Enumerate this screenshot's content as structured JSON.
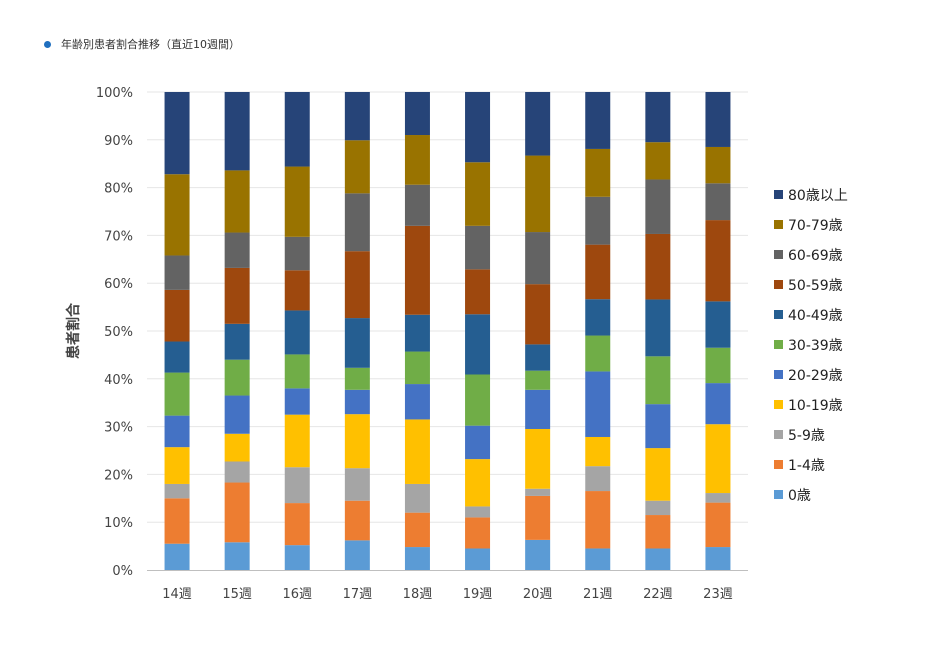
{
  "header": {
    "title": "年齢別患者割合推移（直近10週間）"
  },
  "chart_data": {
    "type": "bar",
    "stacked": true,
    "percent": true,
    "ylabel": "患者割合",
    "ylim": [
      0,
      100
    ],
    "y_ticks": [
      "0%",
      "10%",
      "20%",
      "30%",
      "40%",
      "50%",
      "60%",
      "70%",
      "80%",
      "90%",
      "100%"
    ],
    "grid": true,
    "legend_position": "right",
    "categories": [
      "14週",
      "15週",
      "16週",
      "17週",
      "18週",
      "19週",
      "20週",
      "21週",
      "22週",
      "23週"
    ],
    "series": [
      {
        "name": "0歳",
        "color": "#5b9bd5",
        "values": [
          5.5,
          5.8,
          5.2,
          6.2,
          4.8,
          4.5,
          6.3,
          4.5,
          4.5,
          4.8
        ]
      },
      {
        "name": "1-4歳",
        "color": "#ed7d31",
        "values": [
          9.5,
          12.5,
          8.8,
          8.3,
          7.2,
          6.5,
          9.2,
          12.0,
          7.0,
          9.3
        ]
      },
      {
        "name": "5-9歳",
        "color": "#a5a5a5",
        "values": [
          3.0,
          4.4,
          7.5,
          6.8,
          6.0,
          2.3,
          1.5,
          5.2,
          3.0,
          2.0
        ]
      },
      {
        "name": "10-19歳",
        "color": "#ffc000",
        "values": [
          7.7,
          5.8,
          11.0,
          11.3,
          13.5,
          9.9,
          12.5,
          6.1,
          11.0,
          14.4
        ]
      },
      {
        "name": "20-29歳",
        "color": "#4472c4",
        "values": [
          6.6,
          8.0,
          5.5,
          5.1,
          7.4,
          7.0,
          8.2,
          13.7,
          9.2,
          8.6
        ]
      },
      {
        "name": "30-39歳",
        "color": "#70ad47",
        "values": [
          9.0,
          7.5,
          7.1,
          4.6,
          6.8,
          10.7,
          4.0,
          7.5,
          10.0,
          7.4
        ]
      },
      {
        "name": "40-49歳",
        "color": "#255e91",
        "values": [
          6.5,
          7.5,
          9.2,
          10.4,
          7.7,
          12.6,
          5.5,
          7.6,
          11.9,
          9.7
        ]
      },
      {
        "name": "50-59歳",
        "color": "#9e480e",
        "values": [
          10.8,
          11.7,
          8.4,
          14.0,
          18.6,
          9.4,
          12.6,
          11.4,
          13.7,
          17.0
        ]
      },
      {
        "name": "60-69歳",
        "color": "#636363",
        "values": [
          7.2,
          7.4,
          7.0,
          12.1,
          8.6,
          9.1,
          10.9,
          10.0,
          11.4,
          7.7
        ]
      },
      {
        "name": "70-79歳",
        "color": "#997300",
        "values": [
          17.0,
          13.0,
          14.7,
          11.1,
          10.4,
          13.3,
          16.0,
          10.0,
          7.8,
          7.6
        ]
      },
      {
        "name": "80歳以上",
        "color": "#264478",
        "values": [
          17.2,
          16.4,
          15.6,
          10.1,
          9.0,
          14.7,
          13.3,
          11.9,
          10.5,
          11.5
        ]
      }
    ]
  }
}
